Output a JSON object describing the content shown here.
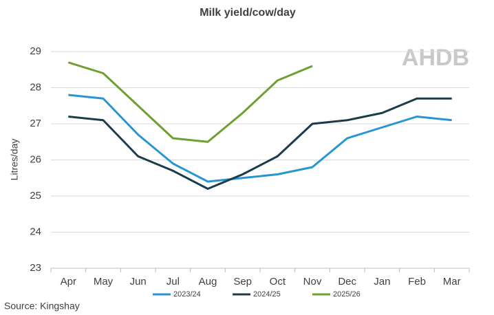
{
  "chart_data": {
    "type": "line",
    "title": "Milk yield/cow/day",
    "y_label": "Litres/day",
    "source": "Source: Kingshay",
    "logo": "AHDB",
    "categories": [
      "Apr",
      "May",
      "Jun",
      "Jul",
      "Aug",
      "Sep",
      "Oct",
      "Nov",
      "Dec",
      "Jan",
      "Feb",
      "Mar"
    ],
    "series": [
      {
        "name": "2023/24",
        "color": "#2596d3",
        "values": [
          27.8,
          27.7,
          26.7,
          25.9,
          25.4,
          25.5,
          25.6,
          25.8,
          26.6,
          26.9,
          27.2,
          27.1
        ]
      },
      {
        "name": "2024/25",
        "color": "#1c3b4a",
        "values": [
          27.2,
          27.1,
          26.1,
          25.7,
          25.2,
          25.6,
          26.1,
          27.0,
          27.1,
          27.3,
          27.7,
          27.7
        ]
      },
      {
        "name": "2025/26",
        "color": "#6e9f33",
        "values": [
          28.7,
          28.4,
          27.5,
          26.6,
          26.5,
          27.3,
          28.2,
          28.6,
          null,
          null,
          null,
          null
        ]
      }
    ],
    "ylim": [
      23,
      29
    ],
    "yticks": [
      23,
      24,
      25,
      26,
      27,
      28,
      29
    ],
    "grid": true,
    "legend": "bottom"
  }
}
